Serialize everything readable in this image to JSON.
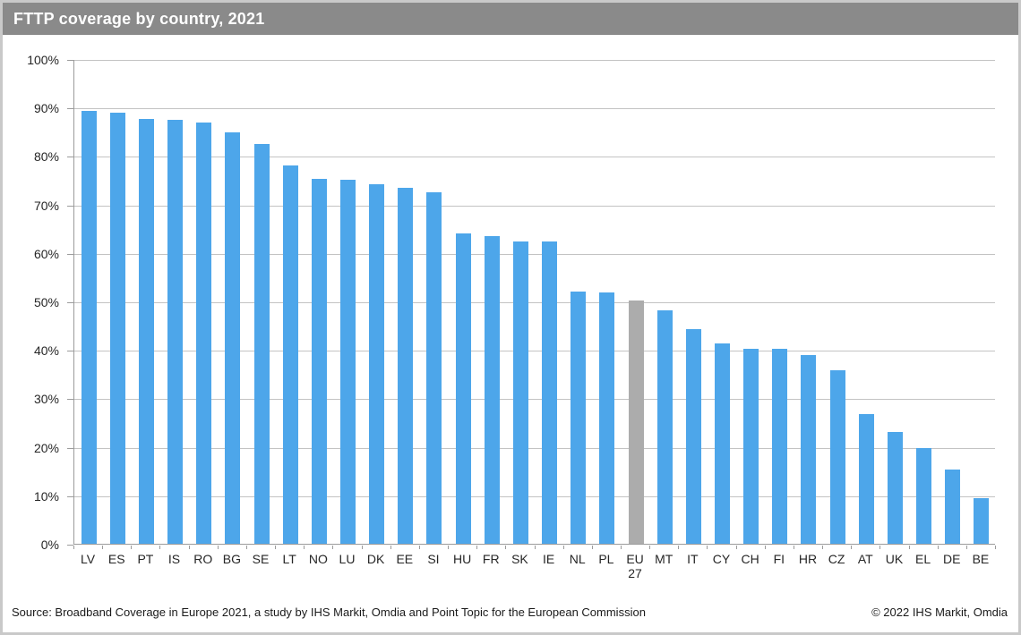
{
  "window": {
    "title": "FTTP coverage by country, 2021"
  },
  "footer": {
    "source": "Source: Broadband Coverage in Europe 2021, a study by IHS Markit, Omdia and Point Topic for the European Commission",
    "copyright": "© 2022 IHS Markit, Omdia"
  },
  "colors": {
    "bar_blue": "#4da6ea",
    "bar_highlight_gray": "#acacac",
    "title_bar_bg": "#8a8a8a",
    "gridline": "#c3c3c3",
    "axis": "#9c9c9c",
    "frame_border": "#c9c9c9"
  },
  "chart_data": {
    "type": "bar",
    "title": "FTTP coverage by country, 2021",
    "xlabel": "",
    "ylabel": "",
    "unit": "%",
    "ylim": [
      0,
      100
    ],
    "ytick_step": 10,
    "ytick_labels": [
      "100%",
      "90%",
      "80%",
      "70%",
      "60%",
      "50%",
      "40%",
      "30%",
      "20%",
      "10%",
      "0%"
    ],
    "grid": true,
    "legend": "none",
    "categories": [
      "LV",
      "ES",
      "PT",
      "IS",
      "RO",
      "BG",
      "SE",
      "LT",
      "NO",
      "LU",
      "DK",
      "EE",
      "SI",
      "HU",
      "FR",
      "SK",
      "IE",
      "NL",
      "PL",
      "EU 27",
      "MT",
      "IT",
      "CY",
      "CH",
      "FI",
      "HR",
      "CZ",
      "AT",
      "UK",
      "EL",
      "DE",
      "BE"
    ],
    "values": [
      89.3,
      88.9,
      87.6,
      87.5,
      86.9,
      84.8,
      82.4,
      78.1,
      75.2,
      75.1,
      74.1,
      73.4,
      72.5,
      64.0,
      63.4,
      62.4,
      62.3,
      52.0,
      51.9,
      50.1,
      48.1,
      44.2,
      41.4,
      40.3,
      40.2,
      38.9,
      35.8,
      26.7,
      23.0,
      19.8,
      15.4,
      9.5
    ],
    "bar_color": "#4da6ea",
    "highlight_category": "EU 27",
    "highlight_color": "#acacac"
  }
}
